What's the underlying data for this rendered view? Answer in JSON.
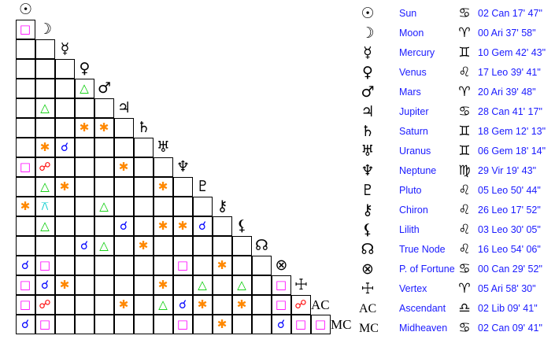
{
  "aspect_styles": {
    "Q": {
      "name": "square",
      "glyph": "□",
      "color": "#ff00ff"
    },
    "T": {
      "name": "trine",
      "glyph": "△",
      "color": "#00cc00"
    },
    "S": {
      "name": "sextile",
      "glyph": "✱",
      "color": "#ff8800"
    },
    "C": {
      "name": "conjunction",
      "glyph": "☌",
      "color": "#0000ff"
    },
    "O": {
      "name": "opposition",
      "glyph": "☍",
      "color": "#ff0000"
    },
    "X": {
      "name": "quincunx",
      "glyph": "⚻",
      "color": "#00cccc"
    }
  },
  "planets": [
    {
      "icon": "sun-icon",
      "glyph": "☉",
      "name": "Sun",
      "sign_icon": "cancer-icon",
      "sign": "♋",
      "position": "02 Can 17' 47\""
    },
    {
      "icon": "moon-icon",
      "glyph": "☽",
      "name": "Moon",
      "sign_icon": "aries-icon",
      "sign": "♈",
      "position": "00 Ari 37' 58\""
    },
    {
      "icon": "mercury-icon",
      "glyph": "☿",
      "name": "Mercury",
      "sign_icon": "gemini-icon",
      "sign": "♊",
      "position": "10 Gem 42' 43\""
    },
    {
      "icon": "venus-icon",
      "glyph": "♀",
      "name": "Venus",
      "sign_icon": "leo-icon",
      "sign": "♌",
      "position": "17 Leo 39' 41\""
    },
    {
      "icon": "mars-icon",
      "glyph": "♂",
      "name": "Mars",
      "sign_icon": "aries-icon",
      "sign": "♈",
      "position": "20 Ari 39' 48\""
    },
    {
      "icon": "jupiter-icon",
      "glyph": "♃",
      "name": "Jupiter",
      "sign_icon": "cancer-icon",
      "sign": "♋",
      "position": "28 Can 41' 17\""
    },
    {
      "icon": "saturn-icon",
      "glyph": "♄",
      "name": "Saturn",
      "sign_icon": "gemini-icon",
      "sign": "♊",
      "position": "18 Gem 12' 13\""
    },
    {
      "icon": "uranus-icon",
      "glyph": "♅",
      "name": "Uranus",
      "sign_icon": "gemini-icon",
      "sign": "♊",
      "position": "06 Gem 18' 14\""
    },
    {
      "icon": "neptune-icon",
      "glyph": "♆",
      "name": "Neptune",
      "sign_icon": "virgo-icon",
      "sign": "♍",
      "position": "29 Vir 19' 43\""
    },
    {
      "icon": "pluto-icon",
      "glyph": "♇",
      "name": "Pluto",
      "sign_icon": "leo-icon",
      "sign": "♌",
      "position": "05 Leo 50' 44\""
    },
    {
      "icon": "chiron-icon",
      "glyph": "⚷",
      "name": "Chiron",
      "sign_icon": "leo-icon",
      "sign": "♌",
      "position": "26 Leo 17' 52\""
    },
    {
      "icon": "lilith-icon",
      "glyph": "⚸",
      "name": "Lilith",
      "sign_icon": "leo-icon",
      "sign": "♌",
      "position": "03 Leo 30' 05\""
    },
    {
      "icon": "true-node-icon",
      "glyph": "☊",
      "name": "True Node",
      "sign_icon": "leo-icon",
      "sign": "♌",
      "position": "16 Leo 54' 06\""
    },
    {
      "icon": "part-of-fortune-icon",
      "glyph": "⊗",
      "name": "P. of Fortune",
      "sign_icon": "cancer-icon",
      "sign": "♋",
      "position": "00 Can 29' 52\""
    },
    {
      "icon": "vertex-icon",
      "glyph": "☩",
      "name": "Vertex",
      "sign_icon": "aries-icon",
      "sign": "♈",
      "position": "05 Ari 58' 30\""
    },
    {
      "icon": "ascendant-icon",
      "glyph": "AC",
      "name": "Ascendant",
      "sign_icon": "libra-icon",
      "sign": "♎",
      "position": "02 Lib 09' 41\""
    },
    {
      "icon": "midheaven-icon",
      "glyph": "MC",
      "name": "Midheaven",
      "sign_icon": "cancer-icon",
      "sign": "♋",
      "position": "02 Can 09' 41\""
    }
  ],
  "aspect_grid": [
    [],
    [
      "Q"
    ],
    [
      "",
      ""
    ],
    [
      "",
      "",
      ""
    ],
    [
      "",
      "",
      "",
      "T"
    ],
    [
      "",
      "T",
      "",
      "",
      ""
    ],
    [
      "",
      "",
      "",
      "S",
      "S",
      ""
    ],
    [
      "",
      "S",
      "C",
      "",
      "",
      "",
      ""
    ],
    [
      "Q",
      "O",
      "",
      "",
      "",
      "S",
      "",
      ""
    ],
    [
      "",
      "T",
      "S",
      "",
      "",
      "",
      "",
      "S",
      ""
    ],
    [
      "S",
      "X",
      "",
      "",
      "T",
      "",
      "",
      "",
      "",
      ""
    ],
    [
      "",
      "T",
      "",
      "",
      "",
      "C",
      "",
      "S",
      "S",
      "C",
      ""
    ],
    [
      "",
      "",
      "",
      "C",
      "T",
      "",
      "S",
      "",
      "",
      "",
      "",
      ""
    ],
    [
      "C",
      "Q",
      "",
      "",
      "",
      "",
      "",
      "",
      "Q",
      "",
      "S",
      "",
      ""
    ],
    [
      "Q",
      "C",
      "S",
      "",
      "",
      "",
      "",
      "S",
      "",
      "T",
      "",
      "T",
      "",
      "Q"
    ],
    [
      "Q",
      "O",
      "",
      "",
      "",
      "S",
      "",
      "T",
      "C",
      "S",
      "",
      "S",
      "",
      "Q",
      "O"
    ],
    [
      "C",
      "Q",
      "",
      "",
      "",
      "",
      "",
      "",
      "Q",
      "",
      "S",
      "",
      "",
      "C",
      "Q",
      "Q"
    ]
  ]
}
